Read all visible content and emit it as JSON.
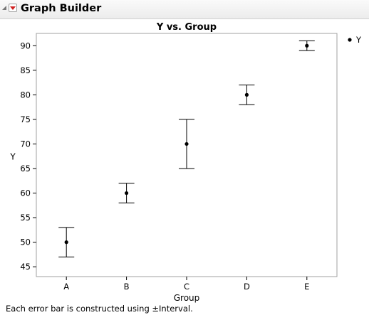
{
  "window": {
    "title": "Graph Builder"
  },
  "chart_data": {
    "type": "scatter",
    "title": "Y vs. Group",
    "xlabel": "Group",
    "ylabel": "Y",
    "categories": [
      "A",
      "B",
      "C",
      "D",
      "E"
    ],
    "series": [
      {
        "name": "Y",
        "values": [
          50,
          60,
          70,
          80,
          90
        ],
        "error_low": [
          47,
          58,
          65,
          78,
          89
        ],
        "error_high": [
          53,
          62,
          75,
          82,
          91
        ]
      }
    ],
    "ylim": [
      43,
      92.5
    ],
    "yticks": [
      45,
      50,
      55,
      60,
      65,
      70,
      75,
      80,
      85,
      90
    ],
    "grid": false,
    "legend": "top-right",
    "point_color": "#000000",
    "frame_color": "#a0a0a0"
  },
  "footer": {
    "note": "Each error bar is constructed using ±Interval."
  }
}
